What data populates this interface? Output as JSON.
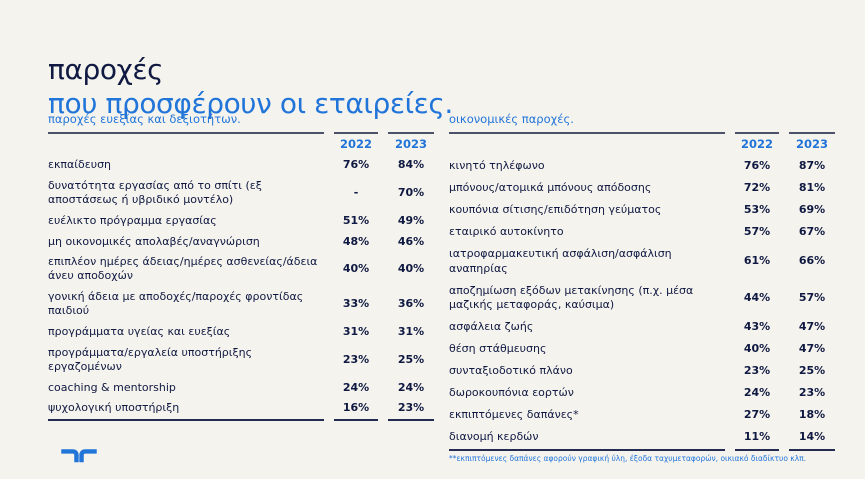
{
  "title": {
    "line1": "παροχές",
    "line2": "που προσφέρουν οι εταιρείες."
  },
  "tables": [
    {
      "section": "παροχές ευεξίας και δεξιοτήτων.",
      "columns": [
        "2022",
        "2023"
      ],
      "rows": [
        {
          "label": "εκπαίδευση",
          "v2022": "76%",
          "v2023": "84%"
        },
        {
          "label": "δυνατότητα εργασίας από το σπίτι (εξ αποστάσεως ή υβριδικό μοντέλο)",
          "v2022": "-",
          "v2023": "70%"
        },
        {
          "label": "ευέλικτο πρόγραμμα εργασίας",
          "v2022": "51%",
          "v2023": "49%"
        },
        {
          "label": "μη οικονομικές απολαβές/αναγνώριση",
          "v2022": "48%",
          "v2023": "46%"
        },
        {
          "label": "επιπλέον ημέρες άδειας/ημέρες ασθενείας/άδεια άνευ αποδοχών",
          "v2022": "40%",
          "v2023": "40%"
        },
        {
          "label": "γονική άδεια με αποδοχές/παροχές φροντίδας παιδιού",
          "v2022": "33%",
          "v2023": "36%"
        },
        {
          "label": "προγράμματα υγείας και ευεξίας",
          "v2022": "31%",
          "v2023": "31%"
        },
        {
          "label": "προγράμματα/εργαλεία υποστήριξης εργαζομένων",
          "v2022": "23%",
          "v2023": "25%"
        },
        {
          "label": "coaching & mentorship",
          "v2022": "24%",
          "v2023": "24%"
        },
        {
          "label": "ψυχολογική υποστήριξη",
          "v2022": "16%",
          "v2023": "23%"
        }
      ]
    },
    {
      "section": "οικονομικές παροχές.",
      "columns": [
        "2022",
        "2023"
      ],
      "rows": [
        {
          "label": "κινητό τηλέφωνο",
          "v2022": "76%",
          "v2023": "87%"
        },
        {
          "label": "μπόνους/ατομικά μπόνους απόδοσης",
          "v2022": "72%",
          "v2023": "81%"
        },
        {
          "label": "κουπόνια σίτισης/επιδότηση γεύματος",
          "v2022": "53%",
          "v2023": "69%"
        },
        {
          "label": "εταιρικό αυτοκίνητο",
          "v2022": "57%",
          "v2023": "67%"
        },
        {
          "label": "ιατροφαρμακευτική ασφάλιση/ασφάλιση αναπηρίας",
          "v2022": "61%",
          "v2023": "66%"
        },
        {
          "label": "αποζημίωση εξόδων μετακίνησης (π.χ. μέσα μαζικής μεταφοράς, καύσιμα)",
          "v2022": "44%",
          "v2023": "57%"
        },
        {
          "label": "ασφάλεια ζωής",
          "v2022": "43%",
          "v2023": "47%"
        },
        {
          "label": "θέση στάθμευσης",
          "v2022": "40%",
          "v2023": "47%"
        },
        {
          "label": "συνταξιοδοτικό πλάνο",
          "v2022": "23%",
          "v2023": "25%"
        },
        {
          "label": "δωροκουπόνια εορτών",
          "v2022": "24%",
          "v2023": "23%"
        },
        {
          "label": "εκπιπτόμενες δαπάνες*",
          "v2022": "27%",
          "v2023": "18%"
        },
        {
          "label": "διανομή κερδών",
          "v2022": "11%",
          "v2023": "14%"
        }
      ],
      "footnote": "**εκπιπτόμενες δαπάνες αφορούν γραφική ύλη, έξοδα ταχυμεταφορών, οικιακό διαδίκτυο κλπ."
    }
  ],
  "colors": {
    "navy": "#0f1941",
    "blue": "#2175d9",
    "background": "#f5f3ee",
    "header_rule": "#4b5269",
    "bottom_rule": "#232c50"
  },
  "logo": "randstad-logo"
}
